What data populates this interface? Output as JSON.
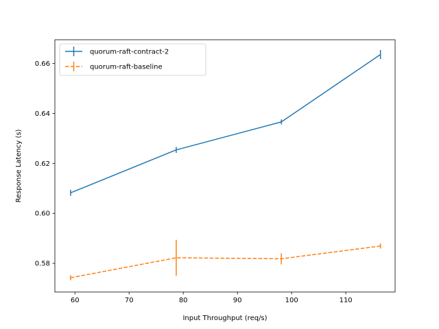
{
  "chart_data": {
    "type": "line",
    "xlabel": "Input Throughput (req/s)",
    "ylabel": "Response Latency (s)",
    "xlim": [
      56.3,
      119.1
    ],
    "ylim": [
      0.5685,
      0.6695
    ],
    "xticks": [
      60,
      70,
      80,
      90,
      100,
      110
    ],
    "yticks": [
      0.58,
      0.6,
      0.62,
      0.64,
      0.66
    ],
    "ytick_labels": [
      "0.58",
      "0.60",
      "0.62",
      "0.64",
      "0.66"
    ],
    "grid": false,
    "legend": "upper left",
    "series": [
      {
        "name": "quorum-raft-contract-2",
        "color": "#1f77b4",
        "linestyle": "solid",
        "x": [
          59.2,
          78.7,
          98.1,
          116.4
        ],
        "y": [
          0.6082,
          0.6254,
          0.6366,
          0.6636
        ],
        "err": [
          0.0012,
          0.0012,
          0.001,
          0.0018
        ]
      },
      {
        "name": "quorum-raft-baseline",
        "color": "#ff7f0e",
        "linestyle": "dashed",
        "x": [
          59.2,
          78.7,
          98.1,
          116.4
        ],
        "y": [
          0.5742,
          0.5822,
          0.5818,
          0.5869
        ],
        "err": [
          0.001,
          0.0072,
          0.0022,
          0.001
        ]
      }
    ]
  }
}
